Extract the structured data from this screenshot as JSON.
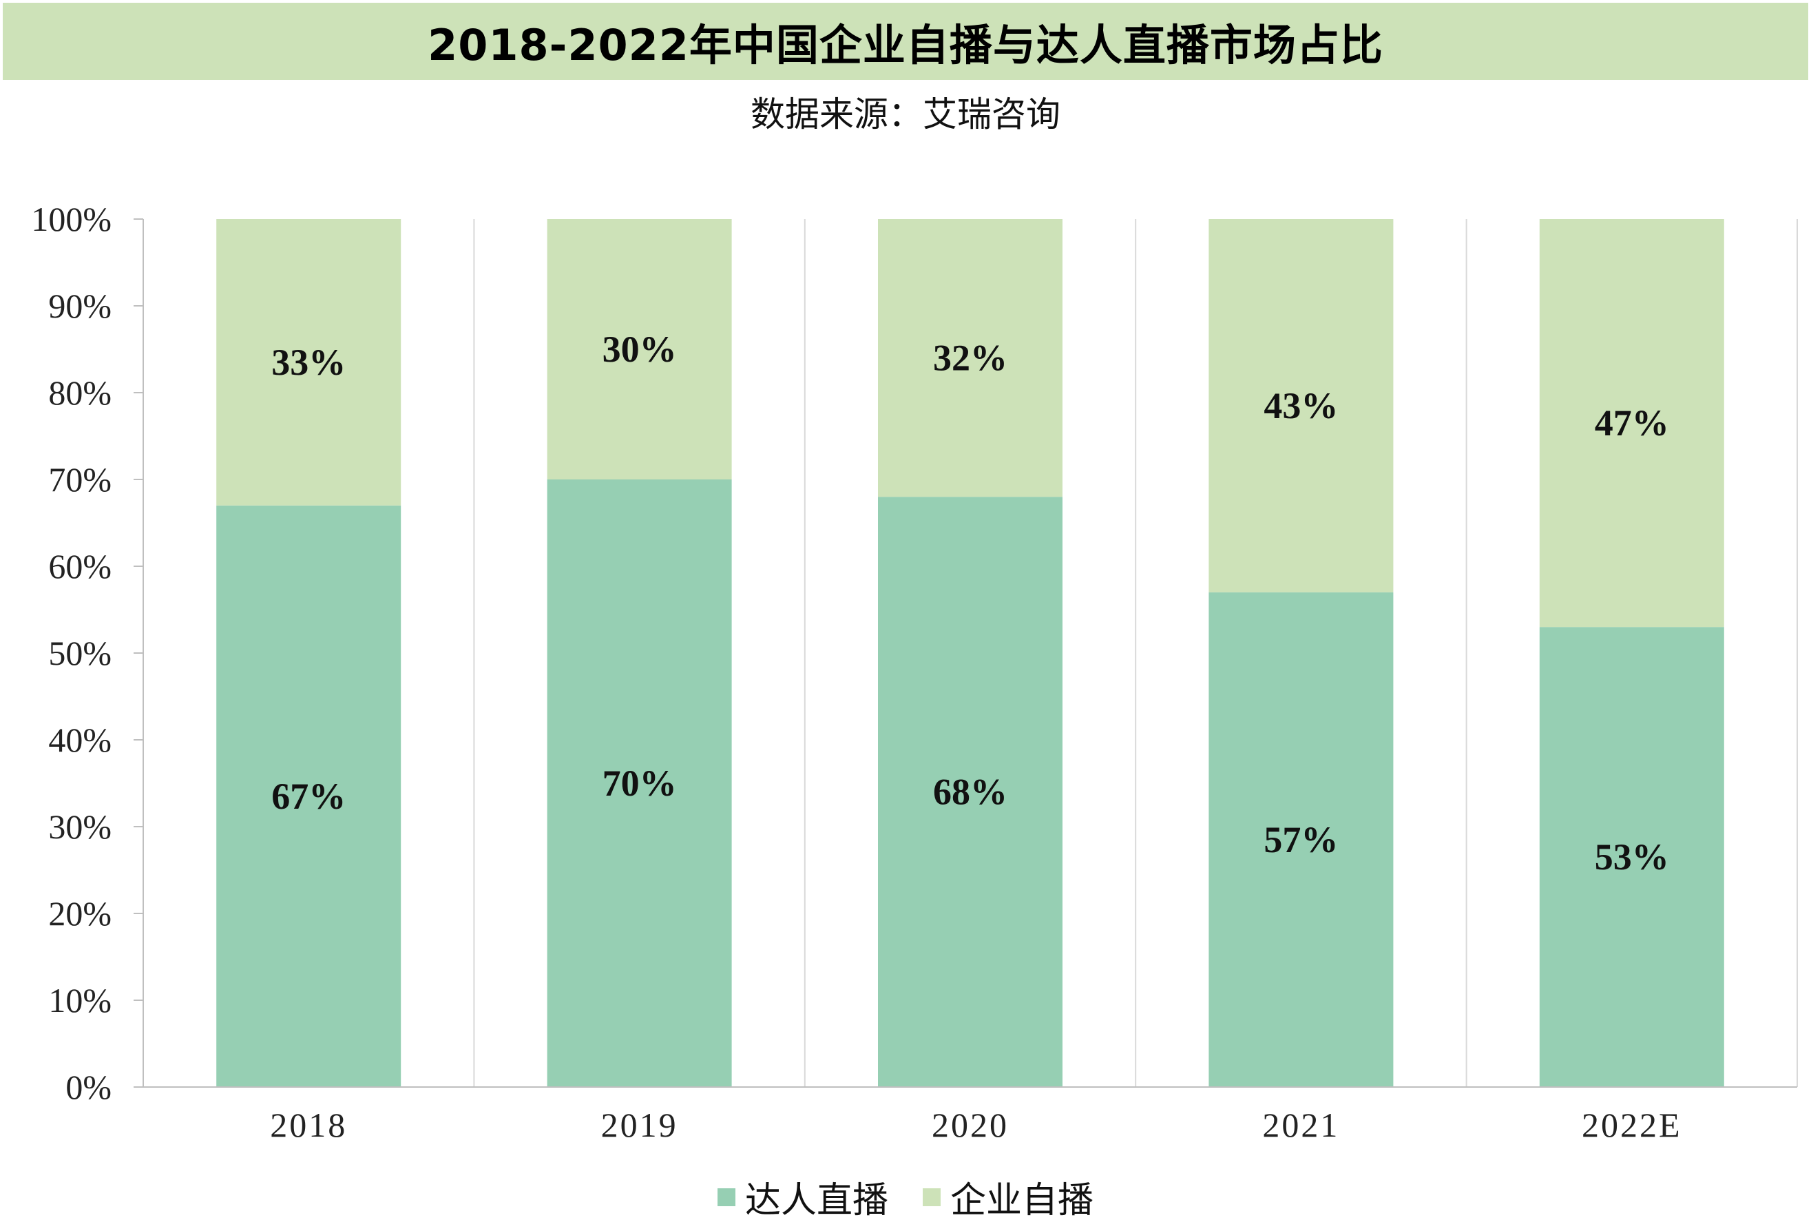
{
  "title": "2018-2022年中国企业自播与达人直播市场占比",
  "subtitle": "数据来源：艾瑞咨询",
  "colors": {
    "series1": "#96cfb3",
    "series2": "#cde2b8",
    "grid": "#d9d9d9",
    "axis": "#bfbfbf",
    "title_bg": "#cde2b8"
  },
  "chart_data": {
    "type": "bar",
    "stacked": true,
    "categories": [
      "2018",
      "2019",
      "2020",
      "2021",
      "2022E"
    ],
    "series": [
      {
        "name": "达人直播",
        "values": [
          67,
          70,
          68,
          57,
          53
        ],
        "labels": [
          "67%",
          "70%",
          "68%",
          "57%",
          "53%"
        ]
      },
      {
        "name": "企业自播",
        "values": [
          33,
          30,
          32,
          43,
          47
        ],
        "labels": [
          "33%",
          "30%",
          "32%",
          "43%",
          "47%"
        ]
      }
    ],
    "ylim": [
      0,
      100
    ],
    "yticks": [
      "0%",
      "10%",
      "20%",
      "30%",
      "40%",
      "50%",
      "60%",
      "70%",
      "80%",
      "90%",
      "100%"
    ],
    "grid": "vertical",
    "legend_position": "bottom"
  }
}
